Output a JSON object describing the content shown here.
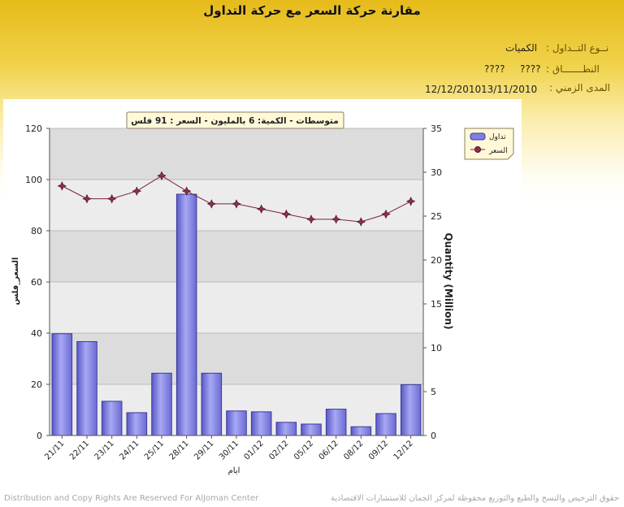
{
  "header": {
    "title": "مقارنة حركة السعر مع حركة التداول",
    "trade_type_label": "نــوع التــداول :",
    "trade_type_value": "الكميات",
    "range_label": "النطـــــــاق :",
    "range_value_1": "????",
    "range_value_2": "????",
    "period_label": "المدى الزمني :",
    "period_start": "13/11/2010",
    "period_end": "12/12/2010"
  },
  "footer": {
    "left": "Distribution and Copy Rights Are Reserved For AlJoman Center",
    "right": "حقوق الترخيص والنسخ والطبع والتوزيع محفوظة لمركز الجمان للاستشارات الاقتصادية"
  },
  "colors": {
    "bar_fill": "#8080e0",
    "bar_stroke": "#3a3a9a",
    "line": "#7a2040",
    "marker": "#8a3050",
    "plot_bg": "#e4e4e4"
  },
  "chart_data": {
    "type": "bar",
    "subtitle": "متوسطات - الكمية: 6 بالمليون  - السعر : 91 فلس",
    "categories": [
      "21/11",
      "22/11",
      "23/11",
      "24/11",
      "25/11",
      "28/11",
      "29/11",
      "30/11",
      "01/12",
      "02/12",
      "05/12",
      "06/12",
      "08/12",
      "09/12",
      "12/12"
    ],
    "xlabel": "ايام",
    "ylabel_left": "السعر_فلس",
    "ylabel_right": "Quantity (Million)",
    "ylim_left": [
      0,
      120
    ],
    "yticks_left": [
      0,
      20,
      40,
      60,
      80,
      100,
      120
    ],
    "ylim_right": [
      0,
      35
    ],
    "yticks_right": [
      0,
      5,
      10,
      15,
      20,
      25,
      30,
      35
    ],
    "grid": true,
    "legend_position": "top-right",
    "series": [
      {
        "name": "تداول",
        "type": "bar",
        "axis": "right",
        "values": [
          11.6,
          10.7,
          3.9,
          2.6,
          7.1,
          27.5,
          7.1,
          2.8,
          2.7,
          1.5,
          1.3,
          3.0,
          1.0,
          2.5,
          5.8
        ]
      },
      {
        "name": "السعر",
        "type": "line",
        "axis": "left",
        "values": [
          97.5,
          92.5,
          92.5,
          95.5,
          101.5,
          95.5,
          90.5,
          90.5,
          88.5,
          86.5,
          84.5,
          84.5,
          83.5,
          86.5,
          91.5
        ]
      }
    ]
  }
}
